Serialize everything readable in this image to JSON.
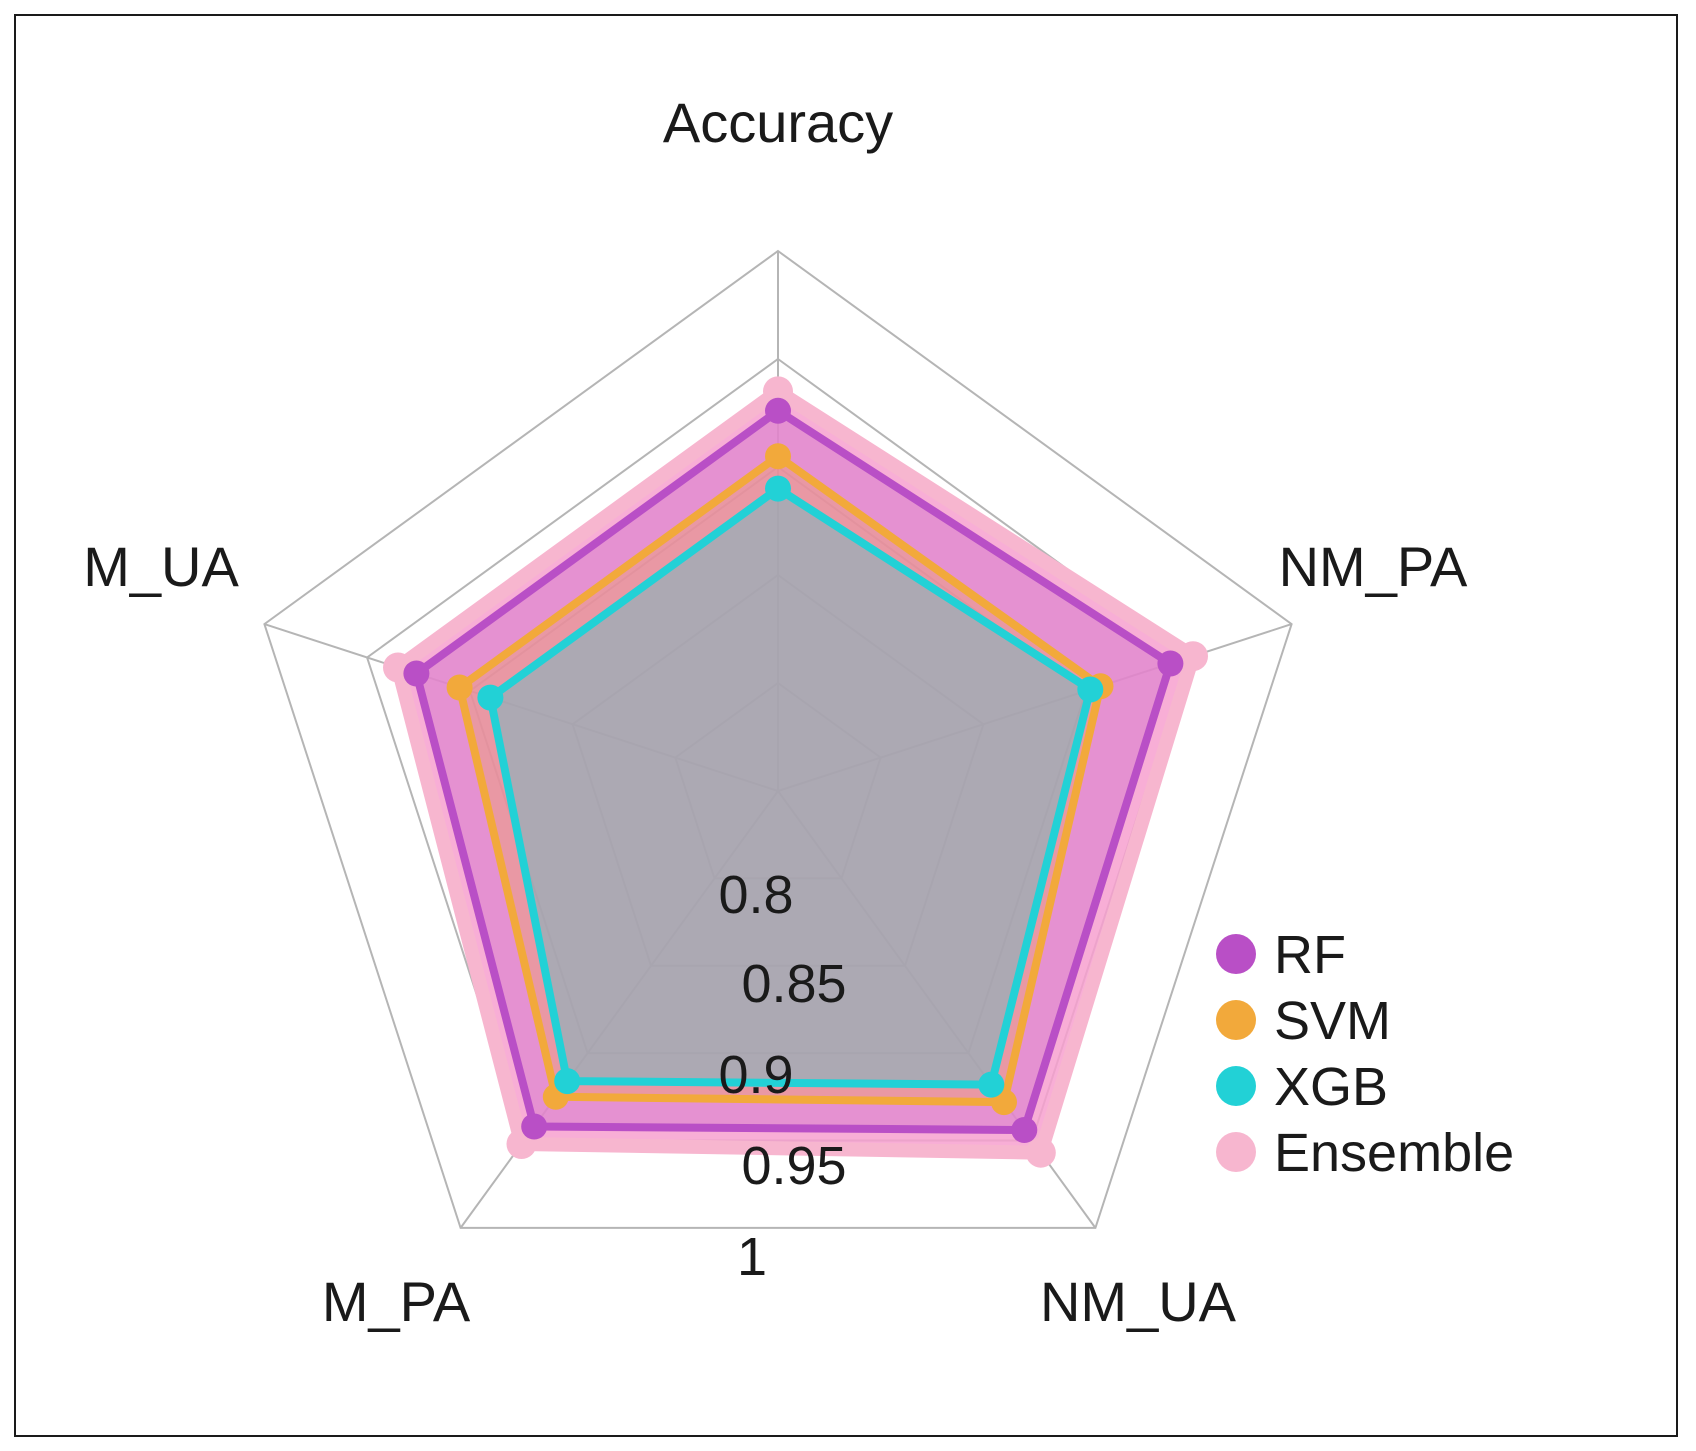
{
  "chart_data": {
    "type": "radar",
    "title": "",
    "axes": [
      "Accuracy",
      "NM_PA",
      "NM_UA",
      "M_PA",
      "M_UA"
    ],
    "rlim": [
      0.75,
      1
    ],
    "ticks": [
      "0.8",
      "0.85",
      "0.9",
      "0.95",
      "1"
    ],
    "tick_values": [
      0.8,
      0.85,
      0.9,
      0.95,
      1
    ],
    "grid": true,
    "legend_position": "right",
    "series": [
      {
        "name": "RF",
        "color": "#b94fc6",
        "values": [
          0.926,
          0.941,
          0.944,
          0.942,
          0.926
        ]
      },
      {
        "name": "SVM",
        "color": "#f2a93b",
        "values": [
          0.905,
          0.907,
          0.928,
          0.925,
          0.905
        ]
      },
      {
        "name": "XGB",
        "color": "#22d1d6",
        "values": [
          0.89,
          0.902,
          0.918,
          0.916,
          0.89
        ]
      },
      {
        "name": "Ensemble",
        "color": "#f7b6cf",
        "values": [
          0.935,
          0.952,
          0.957,
          0.952,
          0.935
        ]
      }
    ]
  }
}
